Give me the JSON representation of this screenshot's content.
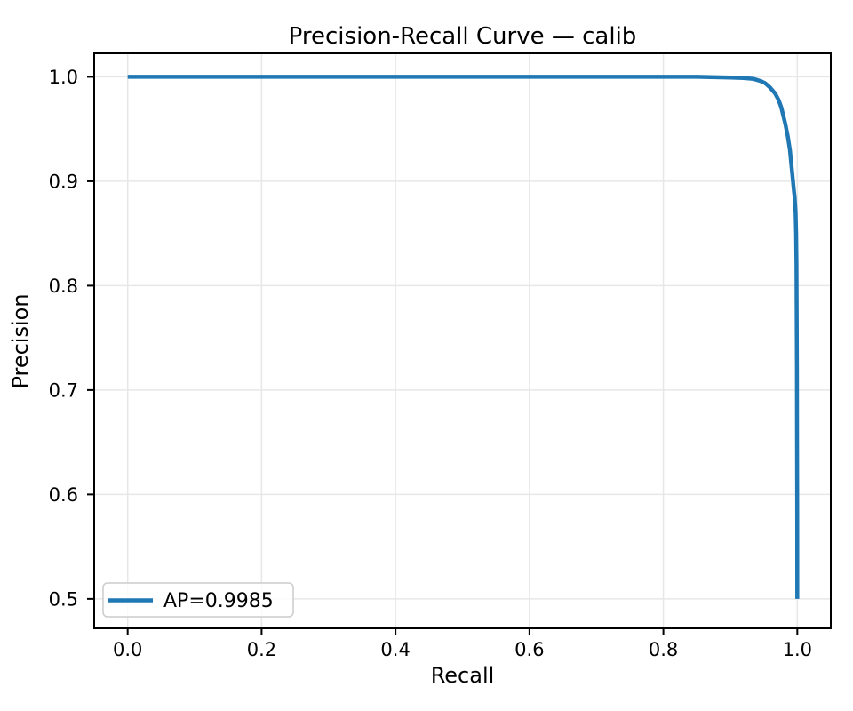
{
  "chart_data": {
    "type": "line",
    "title": "Precision-Recall Curve — calib",
    "xlabel": "Recall",
    "ylabel": "Precision",
    "xlim": [
      -0.05,
      1.05
    ],
    "ylim": [
      0.4718,
      1.0225
    ],
    "x_ticks": [
      0.0,
      0.2,
      0.4,
      0.6,
      0.8,
      1.0
    ],
    "x_tick_labels": [
      "0.0",
      "0.2",
      "0.4",
      "0.6",
      "0.8",
      "1.0"
    ],
    "y_ticks": [
      0.5,
      0.6,
      0.7,
      0.8,
      0.9,
      1.0
    ],
    "y_tick_labels": [
      "0.5",
      "0.6",
      "0.7",
      "0.8",
      "0.9",
      "1.0"
    ],
    "grid": true,
    "legend_position": "lower left",
    "ap": 0.9985,
    "series": [
      {
        "name": "AP=0.9985",
        "color": "#1f77b4",
        "points": [
          [
            0.0,
            1.0
          ],
          [
            0.1,
            1.0
          ],
          [
            0.2,
            1.0
          ],
          [
            0.3,
            1.0
          ],
          [
            0.4,
            1.0
          ],
          [
            0.5,
            1.0
          ],
          [
            0.6,
            1.0
          ],
          [
            0.7,
            1.0
          ],
          [
            0.8,
            1.0
          ],
          [
            0.85,
            1.0
          ],
          [
            0.9,
            0.9993
          ],
          [
            0.92,
            0.9988
          ],
          [
            0.935,
            0.998
          ],
          [
            0.945,
            0.996
          ],
          [
            0.952,
            0.994
          ],
          [
            0.959,
            0.99
          ],
          [
            0.967,
            0.984
          ],
          [
            0.972,
            0.978
          ],
          [
            0.976,
            0.971
          ],
          [
            0.982,
            0.955
          ],
          [
            0.986,
            0.942
          ],
          [
            0.989,
            0.93
          ],
          [
            0.991,
            0.917
          ],
          [
            0.993,
            0.904
          ],
          [
            0.995,
            0.891
          ],
          [
            0.996,
            0.885
          ],
          [
            0.9975,
            0.87
          ],
          [
            0.9982,
            0.85
          ],
          [
            0.9988,
            0.82
          ],
          [
            0.9991,
            0.78
          ],
          [
            0.9994,
            0.72
          ],
          [
            0.9996,
            0.66
          ],
          [
            0.9998,
            0.59
          ],
          [
            1.0,
            0.5
          ]
        ]
      }
    ]
  },
  "colors": {
    "line": "#1f77b4",
    "grid": "#e7e7e7",
    "spine": "#000000",
    "text": "#000000",
    "legend_border": "#cccccc",
    "background": "#ffffff"
  }
}
